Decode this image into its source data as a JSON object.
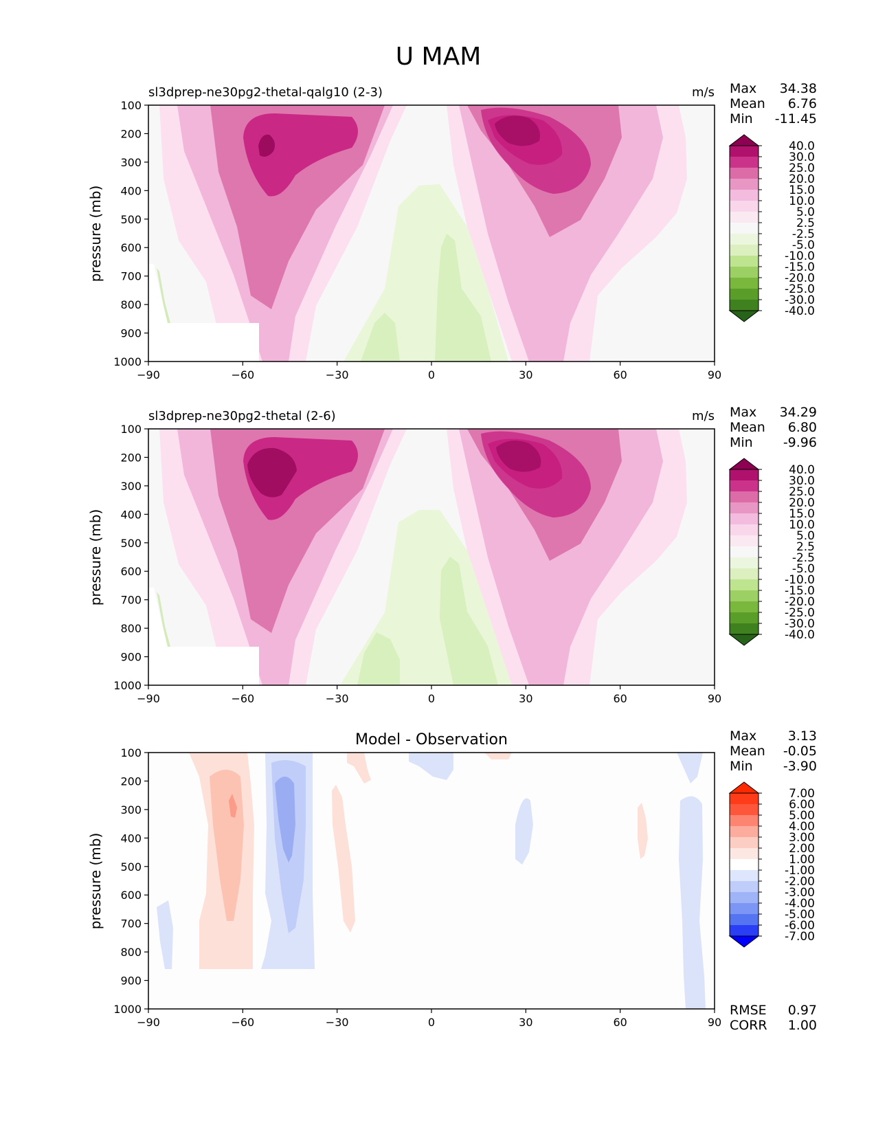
{
  "figure_title": "U MAM",
  "colors": {
    "model_ramp": [
      "#276419",
      "#4d9221",
      "#7fbc41",
      "#b8e186",
      "#e6f5d0",
      "#f7f7f7",
      "#fde0ef",
      "#f1b6da",
      "#de77ae",
      "#c51b7d",
      "#8e0152"
    ],
    "diff_ramp": [
      "#0000ff",
      "#4a6cf0",
      "#8ea7f5",
      "#c6d3fb",
      "#ffffff",
      "#fcd5cc",
      "#fb9b8a",
      "#ff4a2e",
      "#ff2a00"
    ]
  },
  "chart_data": [
    {
      "type": "heatmap",
      "title": "sl3dprep-ne30pg2-thetal-qalg10 (2-3)",
      "units": "m/s",
      "xlabel": "",
      "ylabel": "pressure (mb)",
      "xlim": [
        -90,
        90
      ],
      "ylim": [
        1000,
        100
      ],
      "x_ticks": [
        "−90",
        "−60",
        "−30",
        "0",
        "30",
        "60",
        "90"
      ],
      "y_ticks": [
        "100",
        "200",
        "300",
        "400",
        "500",
        "600",
        "700",
        "800",
        "900",
        "1000"
      ],
      "stats": [
        {
          "label": "Max",
          "value": "34.38"
        },
        {
          "label": "Mean",
          "value": "6.76"
        },
        {
          "label": "Min",
          "value": "-11.45"
        }
      ],
      "colorbar": {
        "levels": [
          "40.0",
          "30.0",
          "25.0",
          "20.0",
          "15.0",
          "10.0",
          "5.0",
          "2.5",
          "-2.5",
          "-5.0",
          "-10.0",
          "-15.0",
          "-20.0",
          "-25.0",
          "-30.0",
          "-40.0"
        ]
      },
      "features": [
        {
          "kind": "jet",
          "lat": -49,
          "p": 240,
          "peak": 34.38
        },
        {
          "kind": "jet",
          "lat": 28,
          "p": 200,
          "peak": 33.5
        },
        {
          "kind": "easterly",
          "lat": -8,
          "p": 750,
          "min": -11.45
        }
      ]
    },
    {
      "type": "heatmap",
      "title": "sl3dprep-ne30pg2-thetal (2-6)",
      "units": "m/s",
      "xlabel": "",
      "ylabel": "pressure (mb)",
      "xlim": [
        -90,
        90
      ],
      "ylim": [
        1000,
        100
      ],
      "x_ticks": [
        "−90",
        "−60",
        "−30",
        "0",
        "30",
        "60",
        "90"
      ],
      "y_ticks": [
        "100",
        "200",
        "300",
        "400",
        "500",
        "600",
        "700",
        "800",
        "900",
        "1000"
      ],
      "stats": [
        {
          "label": "Max",
          "value": "34.29"
        },
        {
          "label": "Mean",
          "value": "6.80"
        },
        {
          "label": "Min",
          "value": "-9.96"
        }
      ],
      "colorbar": {
        "levels": [
          "40.0",
          "30.0",
          "25.0",
          "20.0",
          "15.0",
          "10.0",
          "5.0",
          "2.5",
          "-2.5",
          "-5.0",
          "-10.0",
          "-15.0",
          "-20.0",
          "-25.0",
          "-30.0",
          "-40.0"
        ]
      },
      "features": [
        {
          "kind": "jet",
          "lat": -48,
          "p": 240,
          "peak": 34.29
        },
        {
          "kind": "jet",
          "lat": 28,
          "p": 200,
          "peak": 33.0
        },
        {
          "kind": "easterly",
          "lat": -8,
          "p": 750,
          "min": -9.96
        }
      ]
    },
    {
      "type": "heatmap",
      "title": "Model - Observation",
      "units": "",
      "xlabel": "",
      "ylabel": "pressure (mb)",
      "xlim": [
        -90,
        90
      ],
      "ylim": [
        1000,
        100
      ],
      "x_ticks": [
        "−90",
        "−60",
        "−30",
        "0",
        "30",
        "60",
        "90"
      ],
      "y_ticks": [
        "100",
        "200",
        "300",
        "400",
        "500",
        "600",
        "700",
        "800",
        "900",
        "1000"
      ],
      "stats": [
        {
          "label": "Max",
          "value": "3.13"
        },
        {
          "label": "Mean",
          "value": "-0.05"
        },
        {
          "label": "Min",
          "value": "-3.90"
        }
      ],
      "colorbar": {
        "levels": [
          "7.00",
          "6.00",
          "5.00",
          "4.00",
          "3.00",
          "2.00",
          "1.00",
          "-1.00",
          "-2.00",
          "-3.00",
          "-4.00",
          "-5.00",
          "-6.00",
          "-7.00"
        ]
      },
      "bottom_stats": [
        {
          "label": "RMSE",
          "value": "0.97"
        },
        {
          "label": "CORR",
          "value": "1.00"
        }
      ],
      "features": [
        {
          "kind": "positive",
          "lat": -62,
          "p": 300,
          "peak": 3.13
        },
        {
          "kind": "negative",
          "lat": -47,
          "p": 350,
          "min": -3.9
        }
      ]
    }
  ]
}
